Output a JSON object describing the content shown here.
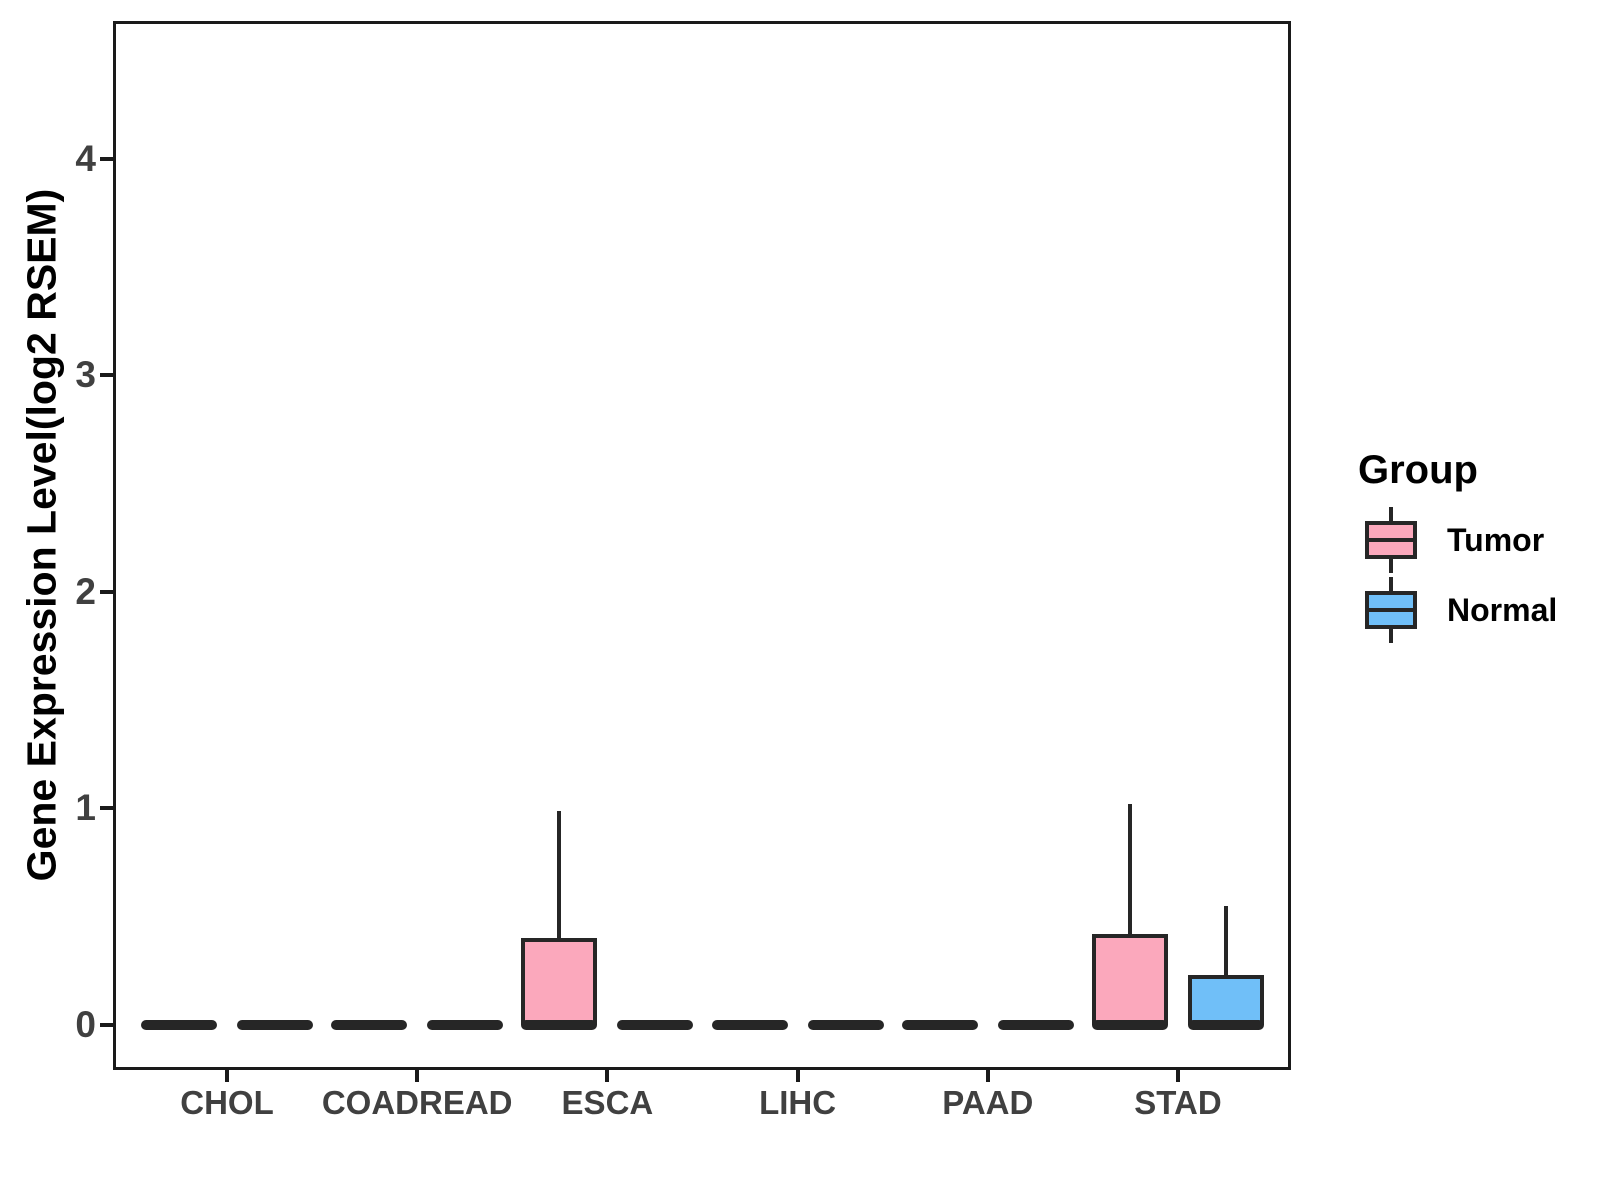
{
  "chart_data": {
    "type": "boxplot",
    "title": "",
    "xlabel": "",
    "ylabel": "Gene Expression Level(log2 RSEM)",
    "categories": [
      "CHOL",
      "COADREAD",
      "ESCA",
      "LIHC",
      "PAAD",
      "STAD"
    ],
    "y_ticks": [
      "0",
      "1",
      "2",
      "3",
      "4"
    ],
    "ylim": [
      -0.21,
      4.63
    ],
    "grid": "off",
    "legend": {
      "title": "Group",
      "position": "right",
      "entries": [
        {
          "label": "Tumor",
          "color": "#fba8bc"
        },
        {
          "label": "Normal",
          "color": "#70bff8"
        }
      ]
    },
    "series": [
      {
        "name": "Tumor",
        "color": "#fba8bc",
        "stats": [
          {
            "category": "CHOL",
            "min": 0,
            "q1": 0,
            "median": 0,
            "q3": 0,
            "max": 0
          },
          {
            "category": "COADREAD",
            "min": 0,
            "q1": 0,
            "median": 0,
            "q3": 0,
            "max": 0
          },
          {
            "category": "ESCA",
            "min": 0,
            "q1": 0,
            "median": 0,
            "q3": 0.4,
            "max": 0.99
          },
          {
            "category": "LIHC",
            "min": 0,
            "q1": 0,
            "median": 0,
            "q3": 0,
            "max": 0
          },
          {
            "category": "PAAD",
            "min": 0,
            "q1": 0,
            "median": 0,
            "q3": 0,
            "max": 0
          },
          {
            "category": "STAD",
            "min": 0,
            "q1": 0,
            "median": 0,
            "q3": 0.42,
            "max": 1.02
          }
        ]
      },
      {
        "name": "Normal",
        "color": "#70bff8",
        "stats": [
          {
            "category": "CHOL",
            "min": 0,
            "q1": 0,
            "median": 0,
            "q3": 0,
            "max": 0
          },
          {
            "category": "COADREAD",
            "min": 0,
            "q1": 0,
            "median": 0,
            "q3": 0,
            "max": 0
          },
          {
            "category": "ESCA",
            "min": 0,
            "q1": 0,
            "median": 0,
            "q3": 0,
            "max": 0
          },
          {
            "category": "LIHC",
            "min": 0,
            "q1": 0,
            "median": 0,
            "q3": 0,
            "max": 0
          },
          {
            "category": "PAAD",
            "min": 0,
            "q1": 0,
            "median": 0,
            "q3": 0,
            "max": 0
          },
          {
            "category": "STAD",
            "min": 0,
            "q1": 0,
            "median": 0,
            "q3": 0.23,
            "max": 0.55
          }
        ]
      }
    ]
  },
  "styles": {
    "tumor_fill": "#fba8bc",
    "normal_fill": "#70bff8",
    "box_stroke": "#262626",
    "axis_line": "#1a1a1a",
    "tick_text": "#404040",
    "title_text": "#000000",
    "background": "#ffffff"
  }
}
